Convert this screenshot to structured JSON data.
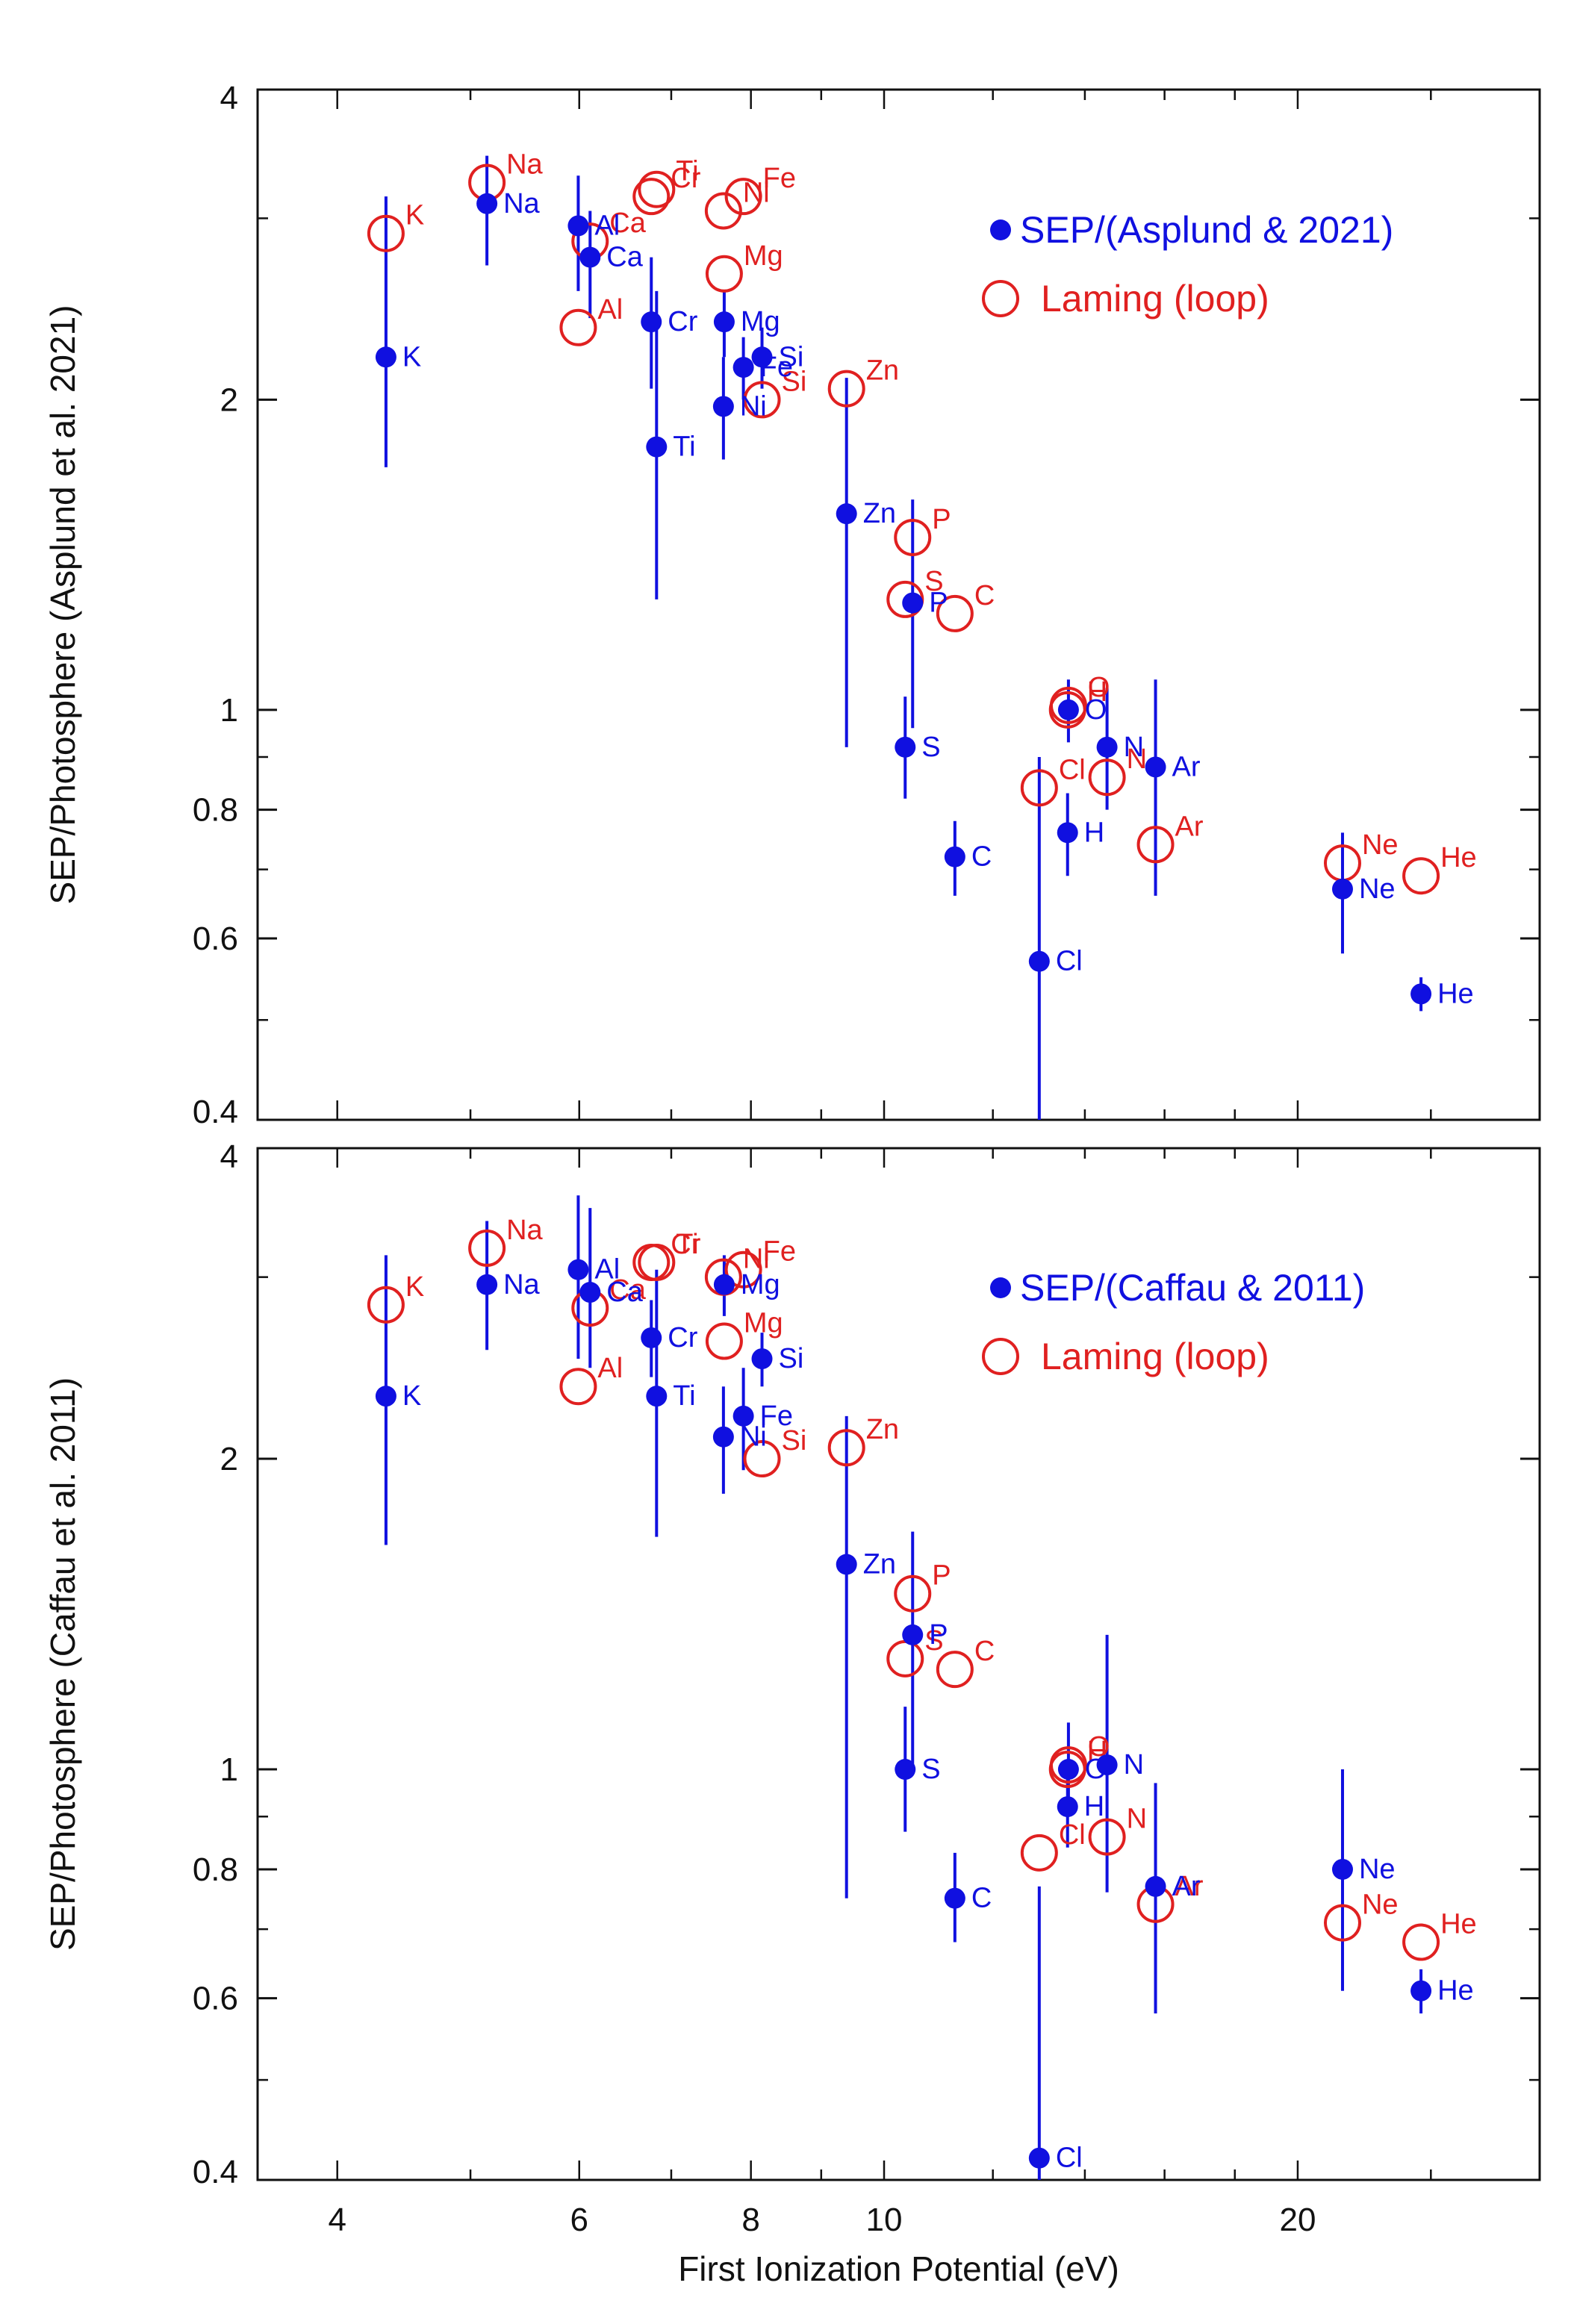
{
  "chart_data": [
    {
      "type": "scatter",
      "panel": "top",
      "ylabel": "SEP/Photosphere (Asplund et al. 2021)",
      "yscale": "log",
      "ylim": [
        0.4,
        4
      ],
      "xscale": "log",
      "xlim": [
        3.5,
        30
      ],
      "yticks": [
        {
          "v": 0.4,
          "label": "0.4"
        },
        {
          "v": 0.6,
          "label": "0.6"
        },
        {
          "v": 0.8,
          "label": "0.8"
        },
        {
          "v": 1,
          "label": "1"
        },
        {
          "v": 2,
          "label": "2"
        },
        {
          "v": 4,
          "label": "4"
        }
      ],
      "legend": [
        {
          "name": "SEP/(Asplund & 2021)",
          "color": "#1010e0",
          "marker": "filled-circle"
        },
        {
          "name": "Laming (loop)",
          "color": "#e02020",
          "marker": "open-circle"
        }
      ],
      "series": [
        {
          "name": "SEP/(Asplund & 2021)",
          "points": [
            {
              "el": "K",
              "x": 4.34,
              "y": 2.2,
              "lo": 1.72,
              "hi": 3.15
            },
            {
              "el": "Na",
              "x": 5.14,
              "y": 3.1,
              "lo": 2.7,
              "hi": 3.45
            },
            {
              "el": "Al",
              "x": 5.99,
              "y": 2.95,
              "lo": 2.55,
              "hi": 3.3
            },
            {
              "el": "Ca",
              "x": 6.11,
              "y": 2.75,
              "lo": 2.4,
              "hi": 3.05
            },
            {
              "el": "Cr",
              "x": 6.77,
              "y": 2.38,
              "lo": 2.05,
              "hi": 2.75
            },
            {
              "el": "Ti",
              "x": 6.83,
              "y": 1.8,
              "lo": 1.28,
              "hi": 2.55
            },
            {
              "el": "Mg",
              "x": 7.65,
              "y": 2.38,
              "lo": 2.2,
              "hi": 2.55
            },
            {
              "el": "Fe",
              "x": 7.9,
              "y": 2.15,
              "lo": 2.0,
              "hi": 2.3
            },
            {
              "el": "Si",
              "x": 8.15,
              "y": 2.2,
              "lo": 2.05,
              "hi": 2.35
            },
            {
              "el": "Ni",
              "x": 7.64,
              "y": 1.97,
              "lo": 1.75,
              "hi": 2.2
            },
            {
              "el": "Zn",
              "x": 9.39,
              "y": 1.55,
              "lo": 0.92,
              "hi": 2.1
            },
            {
              "el": "P",
              "x": 10.49,
              "y": 1.27,
              "lo": 0.96,
              "hi": 1.6
            },
            {
              "el": "S",
              "x": 10.36,
              "y": 0.92,
              "lo": 0.82,
              "hi": 1.03
            },
            {
              "el": "C",
              "x": 11.26,
              "y": 0.72,
              "lo": 0.66,
              "hi": 0.78
            },
            {
              "el": "Cl",
              "x": 12.97,
              "y": 0.57,
              "lo": 0.4,
              "hi": 0.9
            },
            {
              "el": "H",
              "x": 13.6,
              "y": 0.76,
              "lo": 0.69,
              "hi": 0.83
            },
            {
              "el": "O",
              "x": 13.62,
              "y": 1.0,
              "lo": 0.93,
              "hi": 1.07
            },
            {
              "el": "N",
              "x": 14.53,
              "y": 0.92,
              "lo": 0.8,
              "hi": 1.05
            },
            {
              "el": "Ar",
              "x": 15.76,
              "y": 0.88,
              "lo": 0.66,
              "hi": 1.07
            },
            {
              "el": "Ne",
              "x": 21.56,
              "y": 0.67,
              "lo": 0.58,
              "hi": 0.76
            },
            {
              "el": "He",
              "x": 24.59,
              "y": 0.53,
              "lo": 0.51,
              "hi": 0.55
            }
          ]
        },
        {
          "name": "Laming (loop)",
          "points": [
            {
              "el": "K",
              "x": 4.34,
              "y": 2.9
            },
            {
              "el": "Na",
              "x": 5.14,
              "y": 3.25
            },
            {
              "el": "Al",
              "x": 5.99,
              "y": 2.35
            },
            {
              "el": "Ca",
              "x": 6.11,
              "y": 2.85
            },
            {
              "el": "Cr",
              "x": 6.77,
              "y": 3.15
            },
            {
              "el": "Ti",
              "x": 6.83,
              "y": 3.2
            },
            {
              "el": "Mg",
              "x": 7.65,
              "y": 2.65
            },
            {
              "el": "Ni",
              "x": 7.64,
              "y": 3.05
            },
            {
              "el": "Fe",
              "x": 7.9,
              "y": 3.15
            },
            {
              "el": "Si",
              "x": 8.15,
              "y": 2.0
            },
            {
              "el": "Zn",
              "x": 9.39,
              "y": 2.05
            },
            {
              "el": "P",
              "x": 10.49,
              "y": 1.47
            },
            {
              "el": "S",
              "x": 10.36,
              "y": 1.28
            },
            {
              "el": "C",
              "x": 11.26,
              "y": 1.24
            },
            {
              "el": "Cl",
              "x": 12.97,
              "y": 0.84
            },
            {
              "el": "H",
              "x": 13.6,
              "y": 1.0
            },
            {
              "el": "O",
              "x": 13.62,
              "y": 1.01
            },
            {
              "el": "N",
              "x": 14.53,
              "y": 0.86
            },
            {
              "el": "Ar",
              "x": 15.76,
              "y": 0.74
            },
            {
              "el": "Ne",
              "x": 21.56,
              "y": 0.71
            },
            {
              "el": "He",
              "x": 24.59,
              "y": 0.69
            }
          ]
        }
      ]
    },
    {
      "type": "scatter",
      "panel": "bottom",
      "ylabel": "SEP/Photosphere (Caffau et al. 2011)",
      "xlabel": "First Ionization Potential (eV)",
      "yscale": "log",
      "ylim": [
        0.4,
        4
      ],
      "xscale": "log",
      "xlim": [
        3.5,
        30
      ],
      "yticks": [
        {
          "v": 0.4,
          "label": "0.4"
        },
        {
          "v": 0.6,
          "label": "0.6"
        },
        {
          "v": 0.8,
          "label": "0.8"
        },
        {
          "v": 1,
          "label": "1"
        },
        {
          "v": 2,
          "label": "2"
        },
        {
          "v": 4,
          "label": "4"
        }
      ],
      "xticks": [
        {
          "v": 4,
          "label": "4"
        },
        {
          "v": 6,
          "label": "6"
        },
        {
          "v": 8,
          "label": "8"
        },
        {
          "v": 10,
          "label": "10"
        },
        {
          "v": 20,
          "label": "20"
        }
      ],
      "legend": [
        {
          "name": "SEP/(Caffau & 2011)",
          "color": "#1010e0",
          "marker": "filled-circle"
        },
        {
          "name": "Laming (loop)",
          "color": "#e02020",
          "marker": "open-circle"
        }
      ],
      "series": [
        {
          "name": "SEP/(Caffau & 2011)",
          "points": [
            {
              "el": "K",
              "x": 4.34,
              "y": 2.3,
              "lo": 1.65,
              "hi": 3.15
            },
            {
              "el": "Na",
              "x": 5.14,
              "y": 2.95,
              "lo": 2.55,
              "hi": 3.4
            },
            {
              "el": "Al",
              "x": 5.99,
              "y": 3.05,
              "lo": 2.5,
              "hi": 3.6
            },
            {
              "el": "Ca",
              "x": 6.11,
              "y": 2.9,
              "lo": 2.45,
              "hi": 3.5
            },
            {
              "el": "Cr",
              "x": 6.77,
              "y": 2.62,
              "lo": 2.4,
              "hi": 2.85
            },
            {
              "el": "Ti",
              "x": 6.83,
              "y": 2.3,
              "lo": 1.68,
              "hi": 3.05
            },
            {
              "el": "Mg",
              "x": 7.65,
              "y": 2.95,
              "lo": 2.75,
              "hi": 3.15
            },
            {
              "el": "Fe",
              "x": 7.9,
              "y": 2.2,
              "lo": 1.95,
              "hi": 2.45
            },
            {
              "el": "Si",
              "x": 8.15,
              "y": 2.5,
              "lo": 2.35,
              "hi": 2.65
            },
            {
              "el": "Ni",
              "x": 7.64,
              "y": 2.1,
              "lo": 1.85,
              "hi": 2.35
            },
            {
              "el": "Zn",
              "x": 9.39,
              "y": 1.58,
              "lo": 0.75,
              "hi": 2.2
            },
            {
              "el": "P",
              "x": 10.49,
              "y": 1.35,
              "lo": 1.0,
              "hi": 1.7
            },
            {
              "el": "S",
              "x": 10.36,
              "y": 1.0,
              "lo": 0.87,
              "hi": 1.15
            },
            {
              "el": "C",
              "x": 11.26,
              "y": 0.75,
              "lo": 0.68,
              "hi": 0.83
            },
            {
              "el": "Cl",
              "x": 12.97,
              "y": 0.42,
              "lo": 0.4,
              "hi": 0.77
            },
            {
              "el": "H",
              "x": 13.6,
              "y": 0.92,
              "lo": 0.84,
              "hi": 1.0
            },
            {
              "el": "O",
              "x": 13.62,
              "y": 1.0,
              "lo": 0.9,
              "hi": 1.11
            },
            {
              "el": "N",
              "x": 14.53,
              "y": 1.01,
              "lo": 0.76,
              "hi": 1.35
            },
            {
              "el": "Ar",
              "x": 15.76,
              "y": 0.77,
              "lo": 0.58,
              "hi": 0.97
            },
            {
              "el": "Ne",
              "x": 21.56,
              "y": 0.8,
              "lo": 0.61,
              "hi": 1.0
            },
            {
              "el": "He",
              "x": 24.59,
              "y": 0.61,
              "lo": 0.58,
              "hi": 0.64
            }
          ]
        },
        {
          "name": "Laming (loop)",
          "points": [
            {
              "el": "K",
              "x": 4.34,
              "y": 2.82
            },
            {
              "el": "Na",
              "x": 5.14,
              "y": 3.2
            },
            {
              "el": "Al",
              "x": 5.99,
              "y": 2.35
            },
            {
              "el": "Ca",
              "x": 6.11,
              "y": 2.8
            },
            {
              "el": "Cr",
              "x": 6.77,
              "y": 3.1
            },
            {
              "el": "Ti",
              "x": 6.83,
              "y": 3.1
            },
            {
              "el": "Mg",
              "x": 7.65,
              "y": 2.6
            },
            {
              "el": "Ni",
              "x": 7.64,
              "y": 3.0
            },
            {
              "el": "Fe",
              "x": 7.9,
              "y": 3.05
            },
            {
              "el": "Si",
              "x": 8.15,
              "y": 2.0
            },
            {
              "el": "Zn",
              "x": 9.39,
              "y": 2.05
            },
            {
              "el": "P",
              "x": 10.49,
              "y": 1.48
            },
            {
              "el": "S",
              "x": 10.36,
              "y": 1.28
            },
            {
              "el": "C",
              "x": 11.26,
              "y": 1.25
            },
            {
              "el": "Cl",
              "x": 12.97,
              "y": 0.83
            },
            {
              "el": "H",
              "x": 13.6,
              "y": 1.0
            },
            {
              "el": "O",
              "x": 13.62,
              "y": 1.01
            },
            {
              "el": "N",
              "x": 14.53,
              "y": 0.86
            },
            {
              "el": "Ar",
              "x": 15.76,
              "y": 0.74
            },
            {
              "el": "Ne",
              "x": 21.56,
              "y": 0.71
            },
            {
              "el": "He",
              "x": 24.59,
              "y": 0.68
            }
          ]
        }
      ]
    }
  ]
}
